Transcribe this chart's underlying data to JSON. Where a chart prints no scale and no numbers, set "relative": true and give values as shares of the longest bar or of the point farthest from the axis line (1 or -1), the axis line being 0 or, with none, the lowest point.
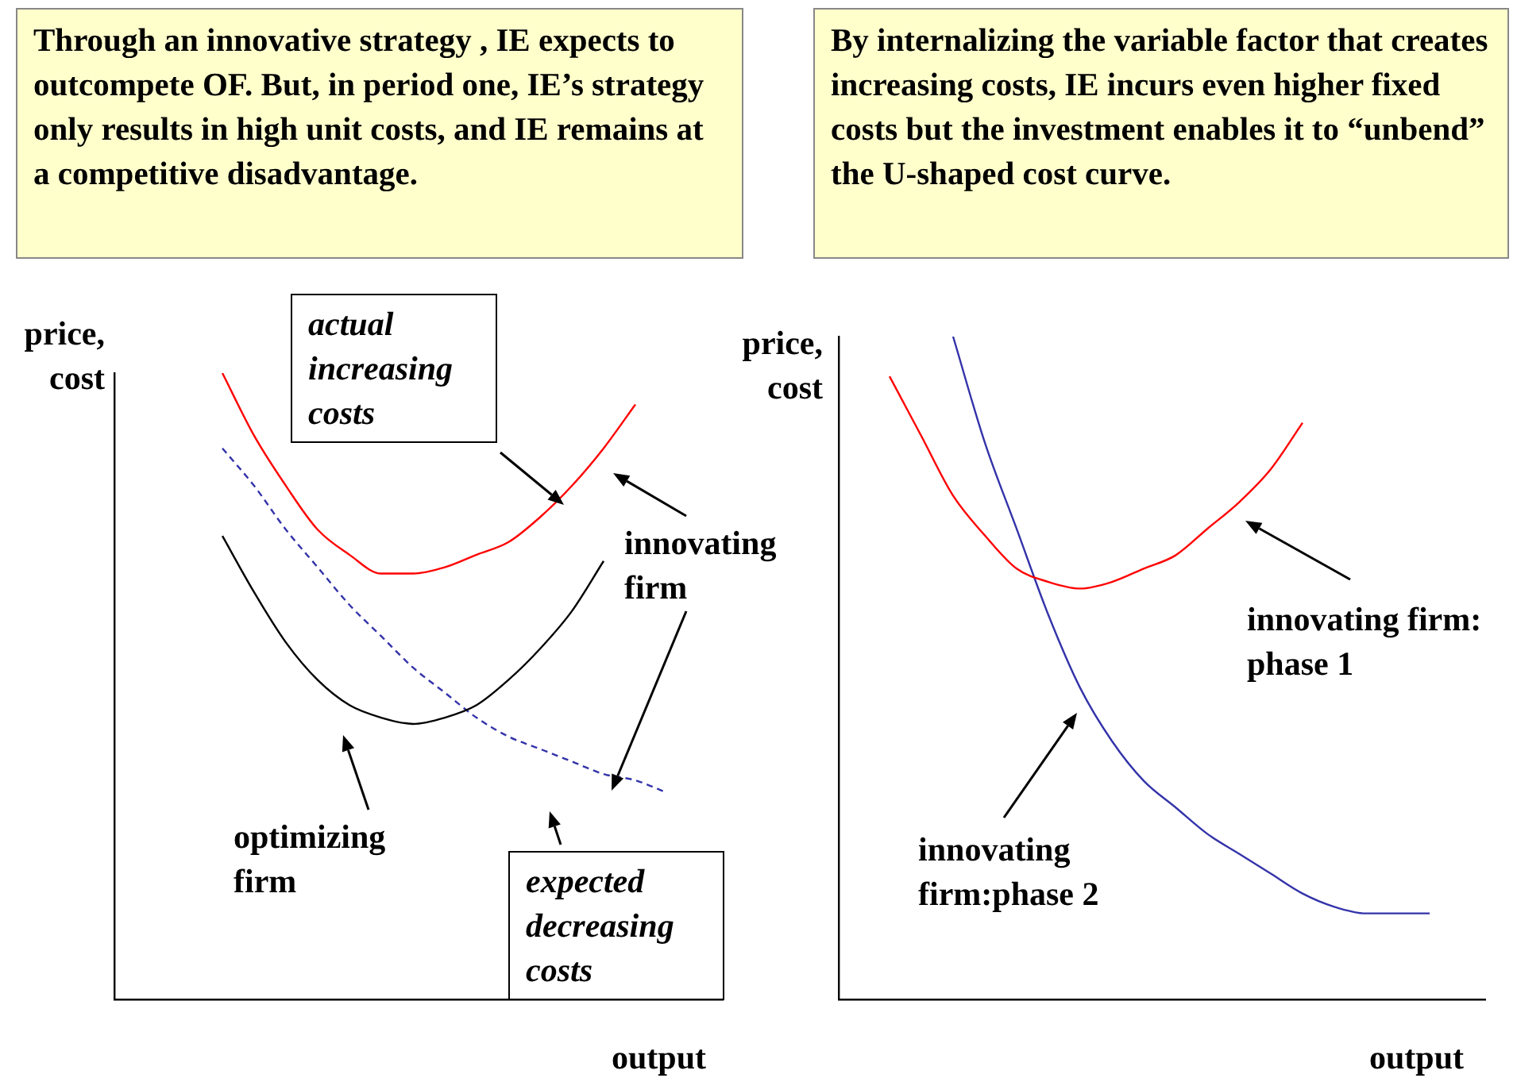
{
  "chart_data": [
    {
      "type": "line",
      "title": "Through an innovative strategy , IE expects to outcompete OF.  But, in period one, IE’s strategy only results in high unit costs, and IE remains at a competitive disadvantage.",
      "xlabel": "output",
      "ylabel": "price, cost",
      "relative": true,
      "legend": false,
      "grid": false,
      "marker": "none",
      "categories": [
        null,
        null,
        null,
        null,
        null,
        null,
        null,
        null,
        null,
        null,
        null,
        null,
        null,
        null,
        null,
        null
      ],
      "series": [
        {
          "color": "#ff0000",
          "line_style": "solid",
          "values": [
            1.0,
            0.9,
            0.82,
            0.75,
            0.71,
            0.68,
            0.68,
            0.69,
            0.71,
            0.73,
            0.77,
            0.82,
            0.88,
            0.95,
            null,
            null
          ]
        },
        {
          "color": "#000000",
          "line_style": "solid",
          "values": [
            0.74,
            0.65,
            0.57,
            0.51,
            0.47,
            0.45,
            0.44,
            0.45,
            0.47,
            0.51,
            0.56,
            0.62,
            0.7,
            null,
            null,
            null
          ]
        },
        {
          "color": "#3333aa",
          "line_style": "dashed",
          "values": [
            0.88,
            0.82,
            0.75,
            0.69,
            0.63,
            0.58,
            0.53,
            0.49,
            0.45,
            0.42,
            0.4,
            0.38,
            0.36,
            0.35,
            0.33,
            null
          ]
        }
      ],
      "annotations": [
        "actual increasing costs",
        "innovating firm",
        "optimizing firm",
        "expected decreasing costs"
      ]
    },
    {
      "type": "line",
      "title": "By internalizing the variable factor that creates increasing costs, IE incurs even higher fixed costs but the investment enables it to “unbend” the U-shaped cost curve.",
      "xlabel": "output",
      "ylabel": "price, cost",
      "relative": true,
      "legend": false,
      "grid": false,
      "marker": "none",
      "categories": [
        null,
        null,
        null,
        null,
        null,
        null,
        null,
        null,
        null,
        null,
        null,
        null,
        null,
        null,
        null,
        null,
        null,
        null
      ],
      "series": [
        {
          "color": "#ff0000",
          "line_style": "solid",
          "values": [
            0.94,
            0.85,
            0.76,
            0.7,
            0.65,
            0.63,
            0.62,
            0.63,
            0.65,
            0.67,
            0.71,
            0.75,
            0.8,
            0.87,
            null,
            null,
            null,
            null
          ]
        },
        {
          "color": "#3333aa",
          "line_style": "solid",
          "values": [
            null,
            null,
            1.0,
            0.84,
            0.71,
            0.58,
            0.47,
            0.39,
            0.33,
            0.29,
            0.25,
            0.22,
            0.19,
            0.16,
            0.14,
            0.13,
            0.13,
            0.13
          ]
        }
      ],
      "annotations": [
        "innovating firm: phase 1",
        "innovating firm:phase 2"
      ]
    }
  ]
}
